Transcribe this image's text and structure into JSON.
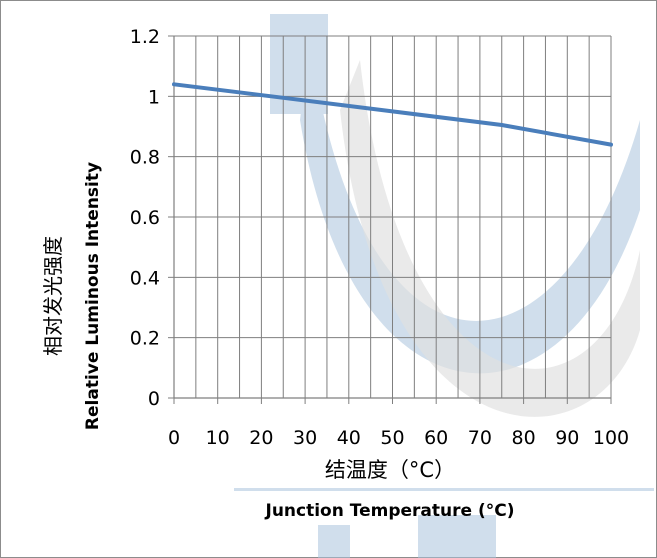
{
  "chart_data": {
    "type": "line",
    "title": "",
    "ylabel_cn": "相对发光强度",
    "ylabel_en": "Relative Luminous Intensity",
    "xlabel_cn": "结温度（°C）",
    "xlabel_en": "Junction Temperature (°C)",
    "xlim": [
      0,
      100
    ],
    "ylim": [
      0,
      1.2
    ],
    "x_ticks": [
      "0",
      "10",
      "20",
      "30",
      "40",
      "50",
      "60",
      "70",
      "80",
      "90",
      "100"
    ],
    "y_ticks": [
      "0",
      "0.2",
      "0.4",
      "0.6",
      "0.8",
      "1",
      "1.2"
    ],
    "x_minor_step": 5,
    "y_major_step": 0.2,
    "grid": true,
    "legend": "none",
    "series": [
      {
        "x": [
          0,
          25,
          50,
          75,
          100
        ],
        "y": [
          1.04,
          0.995,
          0.95,
          0.905,
          0.84
        ],
        "color": "#4a7ebb"
      }
    ]
  },
  "colors": {
    "grid": "#7f7f7f",
    "axis": "#7f7f7f",
    "line": "#4a7ebb",
    "watermark": "#a9c4dc"
  }
}
